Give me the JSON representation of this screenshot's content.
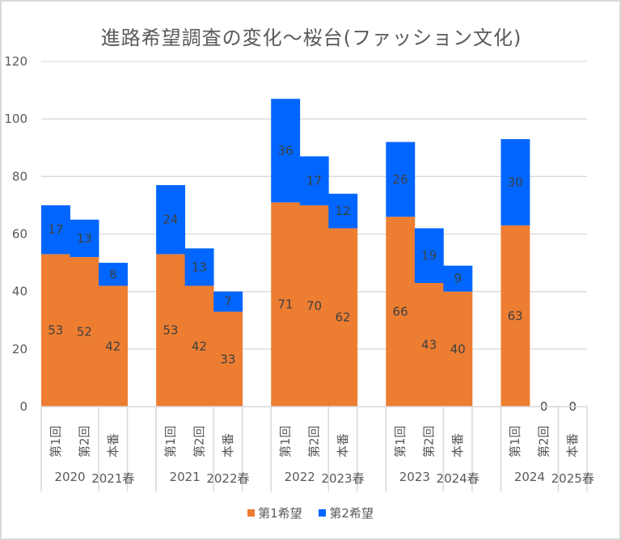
{
  "chart_data": {
    "type": "bar",
    "stacked": true,
    "title": "進路希望調査の変化～桜台(ファッション文化)",
    "xlabel": "",
    "ylabel": "",
    "ylim": [
      0,
      120
    ],
    "yticks": [
      0,
      20,
      40,
      60,
      80,
      100,
      120
    ],
    "grid": true,
    "legend_position": "bottom",
    "groups": [
      {
        "labels": [
          "2020",
          "2021春",
          ""
        ],
        "categories": [
          "第1回",
          "第2回",
          "本番",
          ""
        ]
      },
      {
        "labels": [
          "2021",
          "2022春",
          ""
        ],
        "categories": [
          "第1回",
          "第2回",
          "本番",
          ""
        ]
      },
      {
        "labels": [
          "2022",
          "2023春",
          ""
        ],
        "categories": [
          "第1回",
          "第2回",
          "本番",
          ""
        ]
      },
      {
        "labels": [
          "2023",
          "2024春",
          ""
        ],
        "categories": [
          "第1回",
          "第2回",
          "本番",
          ""
        ]
      },
      {
        "labels": [
          "2024",
          "2025春"
        ],
        "categories": [
          "第1回",
          "第2回",
          "本番"
        ]
      }
    ],
    "categories": [
      "第1回",
      "第2回",
      "本番",
      "",
      "第1回",
      "第2回",
      "本番",
      "",
      "第1回",
      "第2回",
      "本番",
      "",
      "第1回",
      "第2回",
      "本番",
      "",
      "第1回",
      "第2回",
      "本番"
    ],
    "series": [
      {
        "name": "第1希望",
        "color": "#ED7D31",
        "values": [
          53,
          52,
          42,
          null,
          53,
          42,
          33,
          null,
          71,
          70,
          62,
          null,
          66,
          43,
          40,
          null,
          63,
          0,
          0
        ]
      },
      {
        "name": "第2希望",
        "color": "#0066FF",
        "values": [
          17,
          13,
          8,
          null,
          24,
          13,
          7,
          null,
          36,
          17,
          12,
          null,
          26,
          19,
          9,
          null,
          30,
          0,
          0
        ]
      }
    ]
  },
  "legend": {
    "items": [
      {
        "label": "第1希望",
        "color": "#ED7D31"
      },
      {
        "label": "第2希望",
        "color": "#0066FF"
      }
    ]
  }
}
